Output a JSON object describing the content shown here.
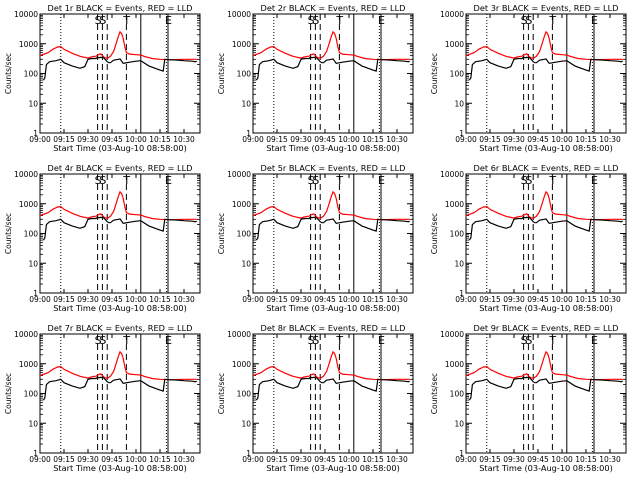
{
  "chart_data": {
    "type": "line",
    "common": {
      "xlabel": "Start Time (03-Aug-10 08:58:00)",
      "ylabel": "Counts/sec",
      "x_tick_labels": [
        "09:00",
        "09:15",
        "09:30",
        "09:45",
        "10:00",
        "10:15",
        "10:30"
      ],
      "x_tick_minutes": [
        0,
        15,
        30,
        45,
        60,
        75,
        90
      ],
      "xlim_minutes": [
        0,
        100
      ],
      "y_scale": "log",
      "ylim": [
        1,
        10000
      ],
      "y_tick_labels": [
        "1",
        "10",
        "100",
        "1000",
        "10000"
      ],
      "series_names": [
        "Events",
        "LLD"
      ],
      "series_colors": {
        "Events": "#000000",
        "LLD": "#ff0000"
      },
      "marker_lines": [
        {
          "minute": 13,
          "style": "dotted",
          "label": ""
        },
        {
          "minute": 36,
          "style": "dashed",
          "label": "S"
        },
        {
          "minute": 39,
          "style": "dashed",
          "label": "S"
        },
        {
          "minute": 42,
          "style": "dashed",
          "label": ""
        },
        {
          "minute": 54,
          "style": "dashed",
          "label": "T"
        },
        {
          "minute": 63,
          "style": "solid",
          "label": ""
        },
        {
          "minute": 79,
          "style": "dotted",
          "label": ""
        },
        {
          "minute": 80,
          "style": "solid",
          "label": "E"
        }
      ]
    },
    "panels": [
      {
        "title": "Det 1r BLACK = Events, RED = LLD"
      },
      {
        "title": "Det 2r BLACK = Events, RED = LLD"
      },
      {
        "title": "Det 3r BLACK = Events, RED = LLD"
      },
      {
        "title": "Det 4r BLACK = Events, RED = LLD"
      },
      {
        "title": "Det 5r BLACK = Events, RED = LLD"
      },
      {
        "title": "Det 6r BLACK = Events, RED = LLD"
      },
      {
        "title": "Det 7r BLACK = Events, RED = LLD"
      },
      {
        "title": "Det 8r BLACK = Events, RED = LLD"
      },
      {
        "title": "Det 9r BLACK = Events, RED = LLD"
      }
    ],
    "series": [
      {
        "name": "LLD",
        "x": [
          0,
          5,
          8,
          11,
          13,
          15,
          20,
          25,
          30,
          32,
          34,
          35,
          36,
          38,
          40,
          42,
          44,
          46,
          48,
          49,
          50,
          51,
          52,
          53,
          54,
          56,
          60,
          63,
          65,
          70,
          75,
          80,
          90,
          98
        ],
        "y": [
          400,
          500,
          650,
          780,
          800,
          650,
          480,
          380,
          330,
          360,
          380,
          380,
          420,
          460,
          350,
          320,
          380,
          550,
          1200,
          1800,
          2500,
          2200,
          1500,
          800,
          500,
          450,
          430,
          420,
          380,
          320,
          300,
          290,
          300,
          300
        ]
      },
      {
        "name": "Events",
        "x": [
          2,
          3,
          4,
          6,
          10,
          13,
          15,
          20,
          25,
          28,
          30,
          31,
          33,
          35,
          36,
          37,
          38,
          40,
          42,
          43,
          44,
          46,
          49,
          50,
          52,
          56,
          60,
          63,
          68,
          72,
          75,
          77,
          78,
          80,
          85,
          90,
          95,
          97,
          98
        ],
        "y": [
          60,
          70,
          200,
          250,
          270,
          300,
          230,
          180,
          150,
          170,
          300,
          310,
          320,
          320,
          350,
          340,
          350,
          330,
          250,
          230,
          230,
          280,
          300,
          310,
          220,
          240,
          260,
          270,
          180,
          150,
          130,
          120,
          300,
          290,
          285,
          270,
          260,
          250,
          260
        ]
      }
    ]
  }
}
